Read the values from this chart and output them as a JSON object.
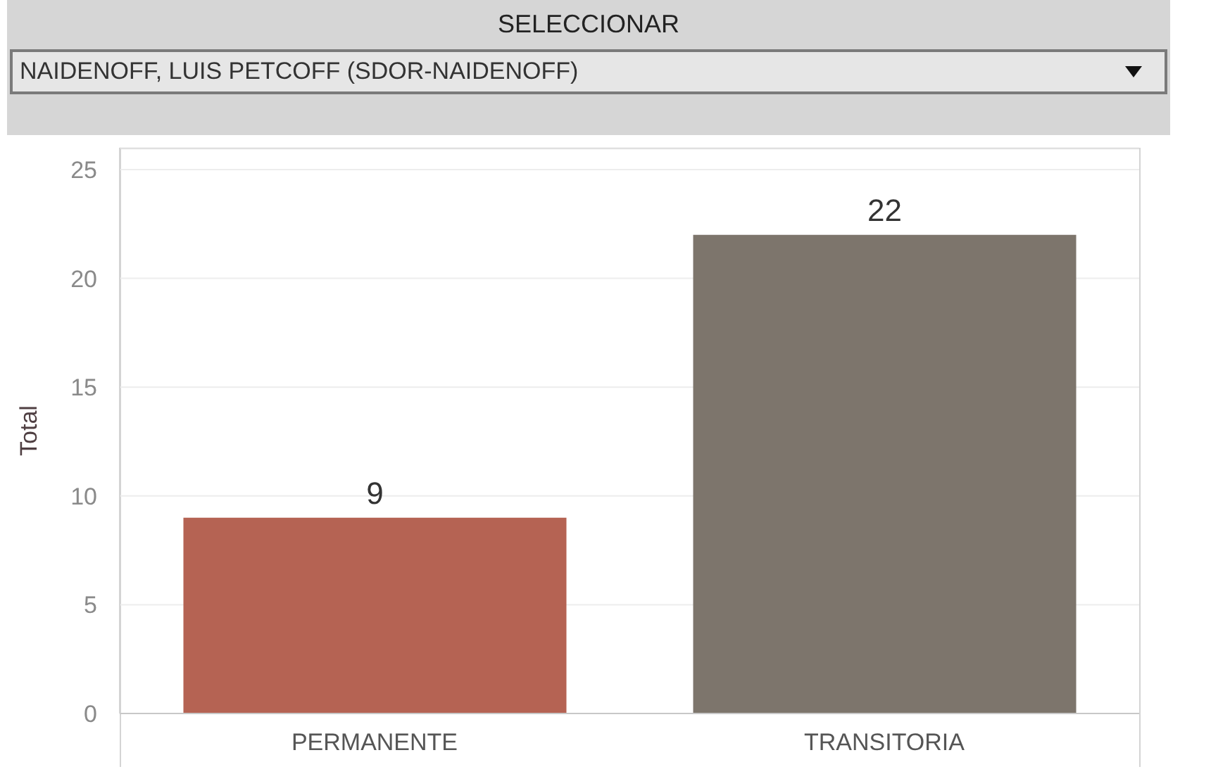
{
  "chart_data": {
    "type": "bar",
    "title": "SELECCIONAR",
    "subtitle": "NAIDENOFF, LUIS PETCOFF (SDOR-NAIDENOFF)",
    "ylabel": "Total",
    "categories": [
      "PERMANENTE",
      "TRANSITORIA"
    ],
    "values": [
      9,
      22
    ],
    "colors": [
      "#b56353",
      "#7d756c"
    ],
    "ylim": [
      0,
      26
    ],
    "yticks": [
      0,
      5,
      10,
      15,
      20,
      25
    ],
    "grid": "y",
    "data_labels": true
  }
}
